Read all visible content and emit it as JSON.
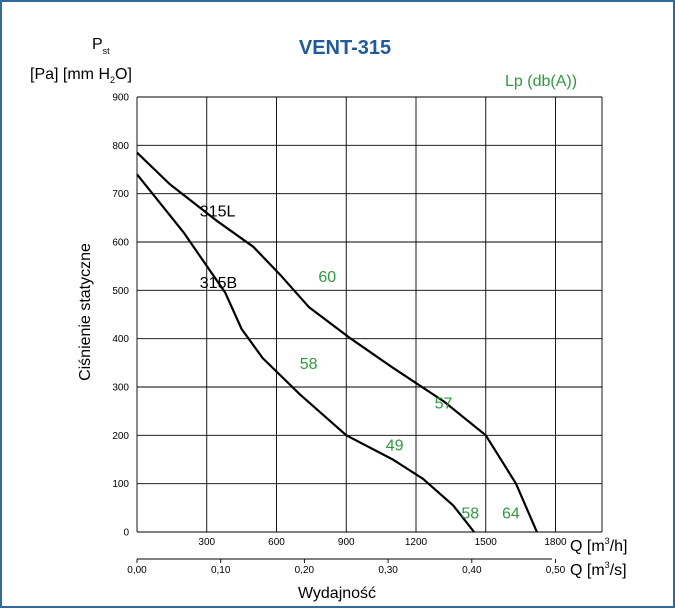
{
  "colors": {
    "border": "#2f6a98",
    "title": "#1f5aa0",
    "curve": "#000000",
    "noise": "#2e9a3e",
    "grid": "#000000"
  },
  "header": {
    "title": "VENT-315",
    "p_label": "P",
    "p_sub": "st",
    "unit_prefix": "[Pa] [mm H",
    "unit_sub": "2",
    "unit_suffix": "O]",
    "noise_axis_label": "Lp (db(A))"
  },
  "chart_data": {
    "type": "line",
    "title": "VENT-315",
    "ylabel": "Ciśnienie statyczne",
    "xlabel": "Wydajność",
    "ylim": [
      0,
      900
    ],
    "xlim": [
      0,
      2000
    ],
    "grid": true,
    "yticks": [
      "0",
      "100",
      "200",
      "300",
      "400",
      "500",
      "600",
      "700",
      "800",
      "900"
    ],
    "x_axis_primary": {
      "unit_label": "Q [m",
      "unit_sup": "3",
      "unit_end": "/h]",
      "ticks": [
        "300",
        "600",
        "900",
        "1200",
        "1500",
        "1800"
      ]
    },
    "x_axis_secondary": {
      "unit_label": "Q [m",
      "unit_sup": "3",
      "unit_end": "/s]",
      "ticks": [
        "0,00",
        "0,10",
        "0,20",
        "0,30",
        "0,40",
        "0,50"
      ]
    },
    "series": [
      {
        "name": "315L",
        "points": [
          [
            0,
            785
          ],
          [
            140,
            720
          ],
          [
            340,
            645
          ],
          [
            500,
            590
          ],
          [
            620,
            530
          ],
          [
            740,
            465
          ],
          [
            920,
            400
          ],
          [
            1100,
            340
          ],
          [
            1320,
            270
          ],
          [
            1500,
            200
          ],
          [
            1630,
            100
          ],
          [
            1720,
            0
          ]
        ]
      },
      {
        "name": "315B",
        "points": [
          [
            0,
            740
          ],
          [
            200,
            620
          ],
          [
            380,
            495
          ],
          [
            450,
            420
          ],
          [
            540,
            360
          ],
          [
            700,
            285
          ],
          [
            900,
            200
          ],
          [
            1100,
            150
          ],
          [
            1230,
            110
          ],
          [
            1360,
            55
          ],
          [
            1450,
            0
          ]
        ]
      }
    ],
    "noise_labels": [
      {
        "text": "60",
        "q": 780,
        "p": 530
      },
      {
        "text": "58",
        "q": 700,
        "p": 350
      },
      {
        "text": "57",
        "q": 1280,
        "p": 268
      },
      {
        "text": "49",
        "q": 1070,
        "p": 181
      },
      {
        "text": "58",
        "q": 1395,
        "p": 40
      },
      {
        "text": "64",
        "q": 1570,
        "p": 40
      }
    ]
  }
}
